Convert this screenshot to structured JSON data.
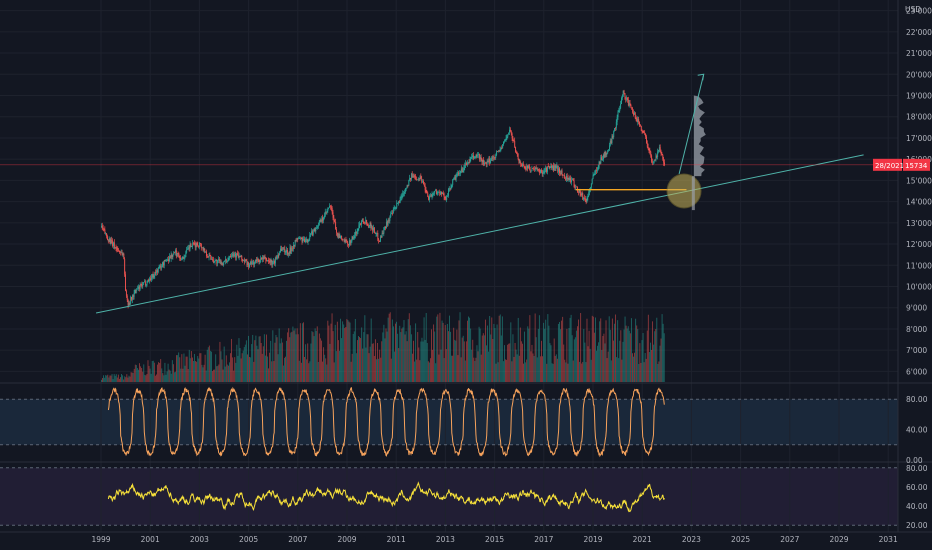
{
  "currency": "USD",
  "price_label": {
    "date": "28/2021",
    "value": "15734"
  },
  "colors": {
    "background": "#131722",
    "candle_up": "#26a69a",
    "candle_down": "#ef5350",
    "trendline": "#4fb3a9",
    "support_line": "#f5a623",
    "rsi_line": "#f7a35c",
    "osc_line": "#f7e13a",
    "price_line": "#f23645"
  },
  "chart_data": {
    "type": "line",
    "panels": [
      {
        "name": "price",
        "ylim": [
          5500,
          23500
        ],
        "yticks": [
          "6000",
          "7000",
          "8000",
          "9000",
          "10000",
          "11000",
          "12000",
          "13000",
          "14000",
          "15000",
          "16000",
          "17000",
          "18000",
          "19000",
          "20000",
          "21000",
          "22000",
          "23000"
        ],
        "yticks_display": [
          "6'000",
          "7'000",
          "8'000",
          "9'000",
          "10'000",
          "11'000",
          "12'000",
          "13'000",
          "14'000",
          "15'000",
          "16'000",
          "17'000",
          "18'000",
          "19'000",
          "20'000",
          "21'000",
          "22'000",
          "23'000"
        ],
        "series": [
          {
            "type": "line",
            "x": [
              1999.0,
              1999.3,
              1999.6,
              1999.9,
              2000.0,
              2000.1,
              2000.4,
              2000.7,
              2001.0,
              2001.3,
              2001.6,
              2002.0,
              2002.3,
              2002.6,
              2003.0,
              2003.3,
              2003.6,
              2004.0,
              2004.3,
              2004.6,
              2005.0,
              2005.3,
              2005.6,
              2006.0,
              2006.3,
              2006.6,
              2007.0,
              2007.3,
              2007.6,
              2008.0,
              2008.3,
              2008.6,
              2009.0,
              2009.3,
              2009.6,
              2010.0,
              2010.3,
              2010.6,
              2011.0,
              2011.3,
              2011.6,
              2012.0,
              2012.3,
              2012.6,
              2013.0,
              2013.3,
              2013.6,
              2014.0,
              2014.3,
              2014.6,
              2015.0,
              2015.3,
              2015.6,
              2016.0,
              2016.3,
              2016.6,
              2016.9,
              2017.2,
              2017.5,
              2017.8,
              2018.1,
              2018.4,
              2018.7,
              2019.0,
              2019.3,
              2019.6,
              2019.9,
              2020.2,
              2020.5,
              2020.8,
              2021.1,
              2021.4,
              2021.7,
              2021.9
            ],
            "y": [
              12800,
              12200,
              11800,
              11500,
              9500,
              9200,
              9800,
              10100,
              10400,
              10800,
              11200,
              11600,
              11300,
              11900,
              12000,
              11500,
              11200,
              11100,
              11600,
              11400,
              11000,
              11200,
              11300,
              11100,
              11800,
              11600,
              12300,
              12100,
              12600,
              13200,
              13800,
              12400,
              12000,
              12400,
              13200,
              12800,
              12200,
              13000,
              13800,
              14500,
              15200,
              15100,
              14200,
              14500,
              14200,
              15000,
              15400,
              16000,
              16200,
              15700,
              16200,
              16600,
              17400,
              15800,
              15600,
              15500,
              15400,
              15600,
              15600,
              15200,
              15000,
              14500,
              14000,
              15200,
              16000,
              16400,
              17600,
              19200,
              18400,
              17800,
              17100,
              15800,
              16500,
              15734
            ]
          },
          {
            "type": "trendline",
            "x": [
              1998.8,
              2030.0
            ],
            "y": [
              8750,
              16200
            ]
          },
          {
            "type": "support",
            "x": [
              2018.3,
              2022.8
            ],
            "y": [
              14560,
              14560
            ]
          },
          {
            "type": "projection_arrow",
            "x": [
              2022.5,
              2023.5
            ],
            "y": [
              15300,
              20000
            ]
          }
        ]
      },
      {
        "name": "oscillator_1",
        "ylim": [
          0,
          100
        ],
        "yticks": [
          0,
          40,
          80
        ],
        "yticks_display": [
          "0.00",
          "40.00",
          "80.00"
        ],
        "band": [
          20,
          80
        ]
      },
      {
        "name": "oscillator_2",
        "ylim": [
          15,
          85
        ],
        "yticks": [
          20,
          40,
          60,
          80
        ],
        "yticks_display": [
          "20.00",
          "40.00",
          "60.00",
          "80.00"
        ],
        "band": [
          20,
          80
        ]
      }
    ],
    "xticks": [
      "1999",
      "2001",
      "2003",
      "2005",
      "2007",
      "2009",
      "2011",
      "2013",
      "2015",
      "2017",
      "2019",
      "2021",
      "2023",
      "2025",
      "2027",
      "2029",
      "2031"
    ],
    "xlabel": "",
    "ylabel": ""
  }
}
